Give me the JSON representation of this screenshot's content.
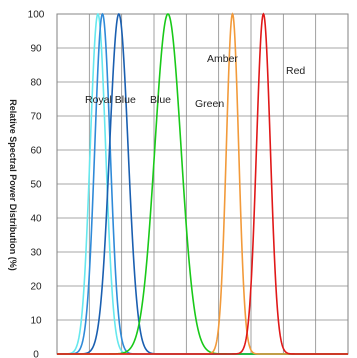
{
  "chart_data": {
    "type": "line",
    "ylabel": "Relative Spectral Power Distribution (%)",
    "xlabel": "",
    "ylim": [
      0,
      100
    ],
    "xlim": [
      400,
      720
    ],
    "yticks": [
      "0",
      "10",
      "20",
      "30",
      "40",
      "50",
      "60",
      "70",
      "80",
      "90",
      "100"
    ],
    "grid": true,
    "legend": "none",
    "series": [
      {
        "name": "",
        "color": "#66e8ee",
        "peak": 445,
        "fwhm": 20
      },
      {
        "name": "Royal Blue",
        "color": "#2f8ad8",
        "peak": 450,
        "fwhm": 20
      },
      {
        "name": "Blue",
        "color": "#1a5fb0",
        "peak": 468,
        "fwhm": 24
      },
      {
        "name": "Green",
        "color": "#19c919",
        "peak": 522,
        "fwhm": 34
      },
      {
        "name": "Amber",
        "color": "#f29a3a",
        "peak": 593,
        "fwhm": 16
      },
      {
        "name": "Red",
        "color": "#e01818",
        "peak": 627,
        "fwhm": 18
      }
    ],
    "annotations": [
      "Royal Blue",
      "Blue",
      "Green",
      "Amber",
      "Red"
    ]
  }
}
